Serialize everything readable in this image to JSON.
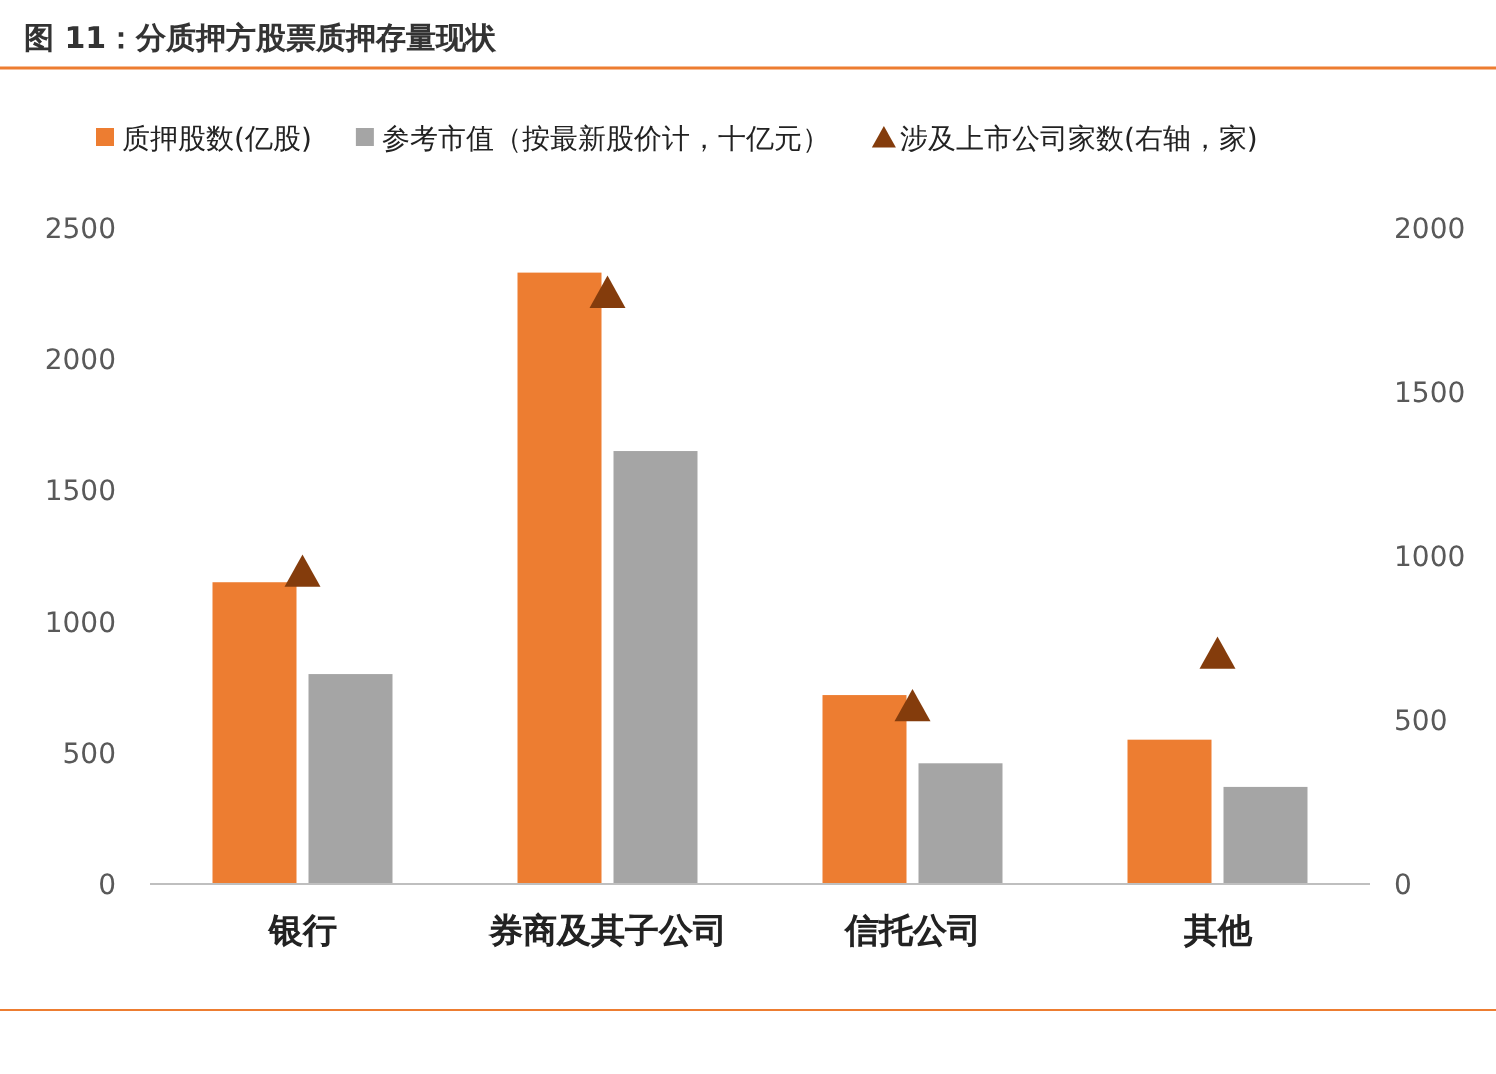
{
  "chart_data": {
    "type": "bar",
    "title": "图 11：分质押方股票质押存量现状",
    "categories": [
      "银行",
      "券商及其子公司",
      "信托公司",
      "其他"
    ],
    "series": [
      {
        "name": "质押股数(亿股)",
        "color": "#ed7d31",
        "values": [
          1150,
          2330,
          720,
          550
        ]
      },
      {
        "name": "参考市值（按最新股价计，十亿元）",
        "color": "#a5a5a5",
        "values": [
          800,
          1650,
          460,
          370
        ]
      },
      {
        "name": "涉及上市公司家数(右轴，家)",
        "color": "#843c0c",
        "values": [
          950,
          1800,
          540,
          700
        ],
        "type": "scatter",
        "axis": "y2",
        "marker": "triangle"
      }
    ],
    "ylim": [
      0,
      2500
    ],
    "yticks": [
      0,
      500,
      1000,
      1500,
      2000,
      2500
    ],
    "y2lim": [
      0,
      2000
    ],
    "y2ticks": [
      0,
      500,
      1000,
      1500,
      2000
    ],
    "legend": "top"
  }
}
